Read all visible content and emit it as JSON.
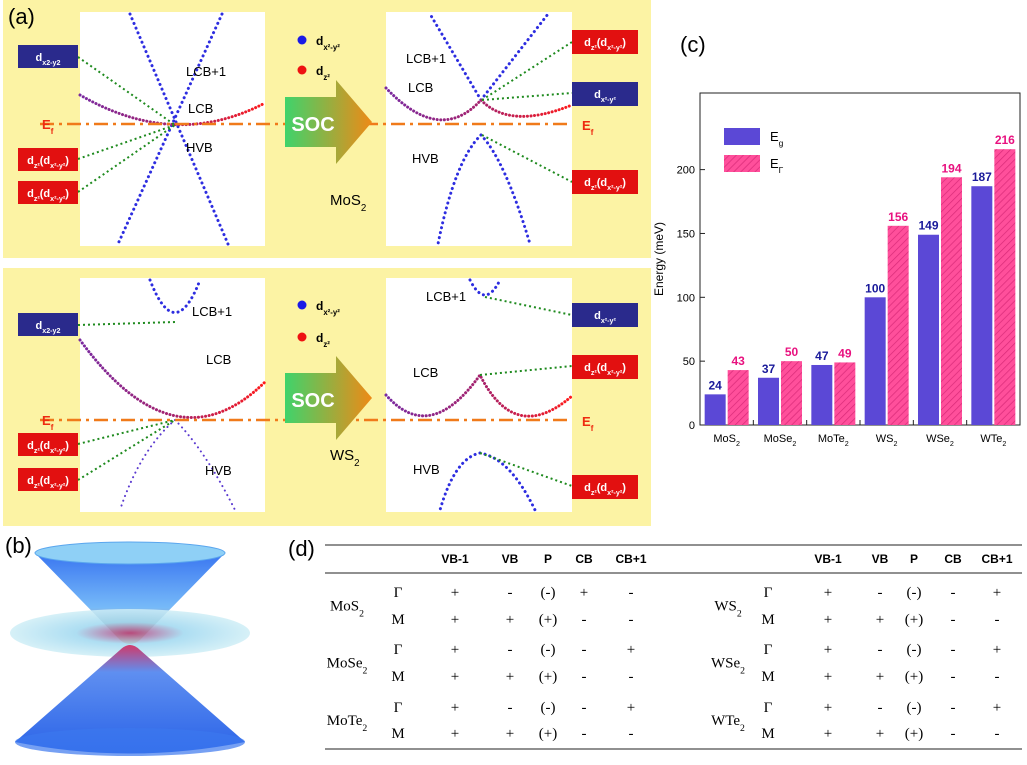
{
  "panel_a": {
    "label": "(a)",
    "soc": "SOC",
    "ef": [
      "E",
      "f"
    ],
    "legend": [
      [
        "d",
        "x²-y²"
      ],
      [
        "d",
        "z²"
      ]
    ],
    "rows": [
      {
        "material": [
          "MoS",
          "2"
        ],
        "left_orbitals": [
          [
            "d",
            "x2-y2"
          ],
          [
            "d",
            "z²",
            "(d",
            "x²-y²",
            ")"
          ],
          [
            "d",
            "z²",
            "(d",
            "x²-y²",
            ")"
          ]
        ],
        "right_orbitals": [
          [
            "d",
            "z²",
            "(d",
            "x²-y²",
            ")"
          ],
          [
            "d",
            "x²-y²"
          ],
          [
            "d",
            "z²",
            "(d",
            "x²-y²",
            ")"
          ]
        ],
        "bands_left": [
          "LCB+1",
          "LCB",
          "HVB"
        ],
        "bands_right": [
          "LCB+1",
          "LCB",
          "HVB"
        ]
      },
      {
        "material": [
          "WS",
          "2"
        ],
        "left_orbitals": [
          [
            "d",
            "x2-y2"
          ],
          [
            "d",
            "z²",
            "(d",
            "x²-y²",
            ")"
          ],
          [
            "d",
            "z²",
            "(d",
            "x²-y²",
            ")"
          ]
        ],
        "right_orbitals": [
          [
            "d",
            "x²-y²"
          ],
          [
            "d",
            "z²",
            "(d",
            "x²-y²",
            ")"
          ],
          [
            "d",
            "z²",
            "(d",
            "x²-y²",
            ")"
          ]
        ],
        "bands_left": [
          "LCB+1",
          "LCB",
          "HVB"
        ],
        "bands_right": [
          "LCB+1",
          "LCB",
          "HVB"
        ]
      }
    ]
  },
  "panel_b": {
    "label": "(b)"
  },
  "chart_data": {
    "type": "bar",
    "panel_label": "(c)",
    "ylabel": "Energy (meV)",
    "categories": [
      [
        "MoS",
        "2"
      ],
      [
        "MoSe",
        "2"
      ],
      [
        "MoTe",
        "2"
      ],
      [
        "WS",
        "2"
      ],
      [
        "WSe",
        "2"
      ],
      [
        "WTe",
        "2"
      ]
    ],
    "series": [
      {
        "name": [
          "E",
          "g"
        ],
        "color": "#5b48d6",
        "label_color": "#1a1a9a",
        "values": [
          24,
          37,
          47,
          100,
          149,
          187
        ]
      },
      {
        "name": [
          "E",
          "Γ"
        ],
        "color": "#ff4f9b",
        "label_color": "#e8117f",
        "hatch": true,
        "values": [
          43,
          50,
          49,
          156,
          194,
          216
        ]
      }
    ],
    "ylim": [
      0,
      260
    ],
    "yticks": [
      0,
      50,
      100,
      150,
      200
    ],
    "legend": "upper left"
  },
  "panel_d": {
    "label": "(d)",
    "tables": [
      {
        "header": [
          "VB-1",
          "VB",
          "P",
          "CB",
          "CB+1"
        ],
        "groups": [
          {
            "material": [
              "MoS",
              "2"
            ],
            "rows": [
              {
                "k": "Γ",
                "cells": [
                  "+",
                  "-",
                  "(-)",
                  "+",
                  "-"
                ]
              },
              {
                "k": "M",
                "cells": [
                  "+",
                  "+",
                  "(+)",
                  "-",
                  "-"
                ]
              }
            ]
          },
          {
            "material": [
              "MoSe",
              "2"
            ],
            "rows": [
              {
                "k": "Γ",
                "cells": [
                  "+",
                  "-",
                  "(-)",
                  "-",
                  "+"
                ]
              },
              {
                "k": "M",
                "cells": [
                  "+",
                  "+",
                  "(+)",
                  "-",
                  "-"
                ]
              }
            ]
          },
          {
            "material": [
              "MoTe",
              "2"
            ],
            "rows": [
              {
                "k": "Γ",
                "cells": [
                  "+",
                  "-",
                  "(-)",
                  "-",
                  "+"
                ]
              },
              {
                "k": "M",
                "cells": [
                  "+",
                  "+",
                  "(+)",
                  "-",
                  "-"
                ]
              }
            ]
          }
        ]
      },
      {
        "header": [
          "VB-1",
          "VB",
          "P",
          "CB",
          "CB+1"
        ],
        "groups": [
          {
            "material": [
              "WS",
              "2"
            ],
            "rows": [
              {
                "k": "Γ",
                "cells": [
                  "+",
                  "-",
                  "(-)",
                  "-",
                  "+"
                ]
              },
              {
                "k": "M",
                "cells": [
                  "+",
                  "+",
                  "(+)",
                  "-",
                  "-"
                ]
              }
            ]
          },
          {
            "material": [
              "WSe",
              "2"
            ],
            "rows": [
              {
                "k": "Γ",
                "cells": [
                  "+",
                  "-",
                  "(-)",
                  "-",
                  "+"
                ]
              },
              {
                "k": "M",
                "cells": [
                  "+",
                  "+",
                  "(+)",
                  "-",
                  "-"
                ]
              }
            ]
          },
          {
            "material": [
              "WTe",
              "2"
            ],
            "rows": [
              {
                "k": "Γ",
                "cells": [
                  "+",
                  "-",
                  "(-)",
                  "-",
                  "+"
                ]
              },
              {
                "k": "M",
                "cells": [
                  "+",
                  "+",
                  "(+)",
                  "-",
                  "-"
                ]
              }
            ]
          }
        ]
      }
    ]
  }
}
